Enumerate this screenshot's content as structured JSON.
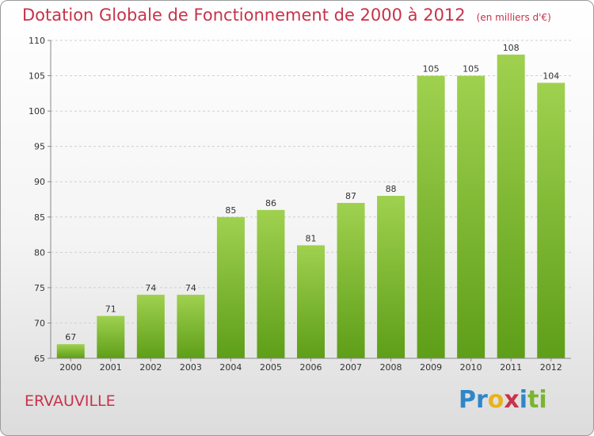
{
  "title": "Dotation Globale de Fonctionnement de 2000 à 2012",
  "subtitle": "(en milliers d'€)",
  "commune": "ERVAUVILLE",
  "logo": "Proxiti",
  "colors": {
    "bar_top": "#9fd14f",
    "bar_bottom": "#5e9e18",
    "title": "#c8324a"
  },
  "chart_data": {
    "type": "bar",
    "categories": [
      "2000",
      "2001",
      "2002",
      "2003",
      "2004",
      "2005",
      "2006",
      "2007",
      "2008",
      "2009",
      "2010",
      "2011",
      "2012"
    ],
    "values": [
      67,
      71,
      74,
      74,
      85,
      86,
      81,
      87,
      88,
      105,
      105,
      108,
      104
    ],
    "ylim": [
      65,
      110
    ],
    "yticks": [
      65,
      70,
      75,
      80,
      85,
      90,
      95,
      100,
      105,
      110
    ],
    "grid": true,
    "xlabel": "",
    "ylabel": ""
  }
}
